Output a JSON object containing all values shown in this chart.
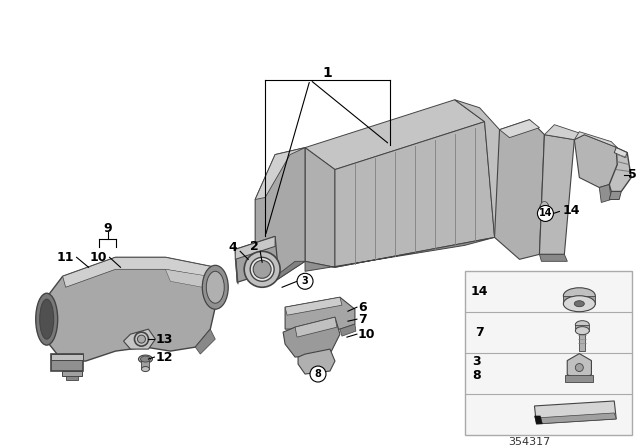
{
  "bg_color": "#ffffff",
  "part_number": "354317",
  "gray_light": "#c8c8c8",
  "gray_mid": "#a0a0a0",
  "gray_dark": "#707070",
  "gray_darker": "#505050",
  "gray_shadow": "#888888",
  "gray_highlight": "#e0e0e0",
  "line_col": "#444444",
  "label_fs": 9,
  "circ_label_fs": 7
}
